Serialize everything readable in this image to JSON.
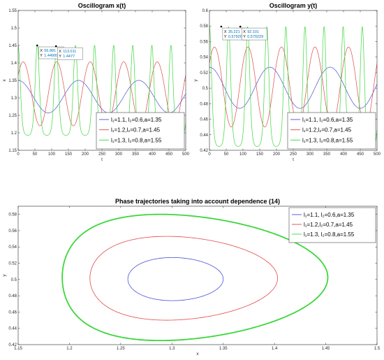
{
  "chart_data": [
    {
      "id": "xt",
      "type": "line",
      "title": "Oscillogram x(t)",
      "xlabel": "t",
      "ylabel": "x",
      "xlim": [
        0,
        500
      ],
      "ylim": [
        1.15,
        1.55
      ],
      "xticks": [
        "0",
        "50",
        "100",
        "150",
        "200",
        "250",
        "300",
        "350",
        "400",
        "450",
        "500"
      ],
      "yticks": [
        "1.15",
        "1.2",
        "1.25",
        "1.3",
        "1.35",
        "1.4",
        "1.45",
        "1.5",
        "1.55"
      ],
      "legend_position": "bottom-right",
      "series": [
        {
          "name": "l₁=1.1, l₂=0.6,a=1.35",
          "color": "#4b50d8",
          "period": 180,
          "min": 1.257,
          "max": 1.35,
          "phase": 0,
          "sharp": false
        },
        {
          "name": "l₁=1.2,l₂=0.7,a=1.45",
          "color": "#e34848",
          "period": 100,
          "min": 1.22,
          "max": 1.403,
          "phase": 15,
          "sharp": false
        },
        {
          "name": "l₁=1.3, l₂=0.8,a=1.55",
          "color": "#3cd73c",
          "period": 57,
          "min": 1.193,
          "max": 1.45,
          "phase": 0,
          "sharp": true
        }
      ],
      "datatips": [
        {
          "x": "56.881",
          "y": "1.44999",
          "x_value": 56.881,
          "y_value": 1.44999,
          "x_label": "X",
          "y_label": "Y"
        },
        {
          "x": "113.011",
          "y": "1.4477",
          "x_value": 113.011,
          "y_value": 1.4477,
          "x_label": "X",
          "y_label": "Y"
        }
      ]
    },
    {
      "id": "yt",
      "type": "line",
      "title": "Oscillogram y(t)",
      "xlabel": "t",
      "ylabel": "y",
      "xlim": [
        0,
        500
      ],
      "ylim": [
        0.42,
        0.6
      ],
      "xticks": [
        "0",
        "50",
        "100",
        "150",
        "200",
        "250",
        "300",
        "350",
        "400",
        "450",
        "500"
      ],
      "yticks": [
        "0.42",
        "0.44",
        "0.46",
        "0.48",
        "0.5",
        "0.52",
        "0.54",
        "0.56",
        "0.58",
        "0.6"
      ],
      "legend_position": "bottom-right",
      "series": [
        {
          "name": "l₁=1.1, l₂=0.6,a=1.35",
          "color": "#4b50d8",
          "period": 180,
          "min": 0.474,
          "max": 0.527,
          "phase": 0,
          "sharp": false
        },
        {
          "name": "l₁=1.2,l₂=0.7,a=1.45",
          "color": "#e34848",
          "period": 100,
          "min": 0.45,
          "max": 0.553,
          "phase": 15,
          "sharp": false
        },
        {
          "name": "l₁=1.3, l₂=0.8,a=1.55",
          "color": "#3cd73c",
          "period": 57,
          "min": 0.425,
          "max": 0.579,
          "phase": 0,
          "sharp": true
        }
      ],
      "datatips": [
        {
          "x": "35.221",
          "y": "0.57926",
          "x_value": 35.221,
          "y_value": 0.57926,
          "x_label": "X",
          "y_label": "Y"
        },
        {
          "x": "92.101",
          "y": "0.579229",
          "x_value": 92.101,
          "y_value": 0.579229,
          "x_label": "X",
          "y_label": "Y"
        }
      ]
    },
    {
      "id": "phase",
      "type": "line",
      "title": "Phase trajectories taking into account dependence (14)",
      "xlabel": "x",
      "ylabel": "y",
      "xlim": [
        1.15,
        1.5
      ],
      "ylim": [
        0.42,
        0.59
      ],
      "xticks": [
        "1.15",
        "1.2",
        "1.25",
        "1.3",
        "1.35",
        "1.4",
        "1.45",
        "1.5"
      ],
      "yticks": [
        "0.42",
        "0.44",
        "0.46",
        "0.48",
        "0.5",
        "0.52",
        "0.54",
        "0.56",
        "0.58"
      ],
      "legend_position": "top-right",
      "series": [
        {
          "name": "l₁=1.1, l₂=0.6,a=1.35",
          "color": "#4b50d8",
          "center": [
            1.3,
            0.5
          ],
          "x_range": [
            1.257,
            1.35
          ],
          "y_range": [
            0.474,
            0.527
          ],
          "x_peak": 1.3
        },
        {
          "name": "l₁=1.2,l₂=0.7,a=1.45",
          "color": "#e34848",
          "center": [
            1.3,
            0.5
          ],
          "x_range": [
            1.22,
            1.403
          ],
          "y_range": [
            0.45,
            0.553
          ],
          "x_peak": 1.293
        },
        {
          "name": "l₁=1.3, l₂=0.8,a=1.55",
          "color": "#3cd73c",
          "center": [
            1.3,
            0.5
          ],
          "x_range": [
            1.193,
            1.452
          ],
          "y_range": [
            0.425,
            0.58
          ],
          "x_peak": 1.285
        }
      ]
    }
  ]
}
